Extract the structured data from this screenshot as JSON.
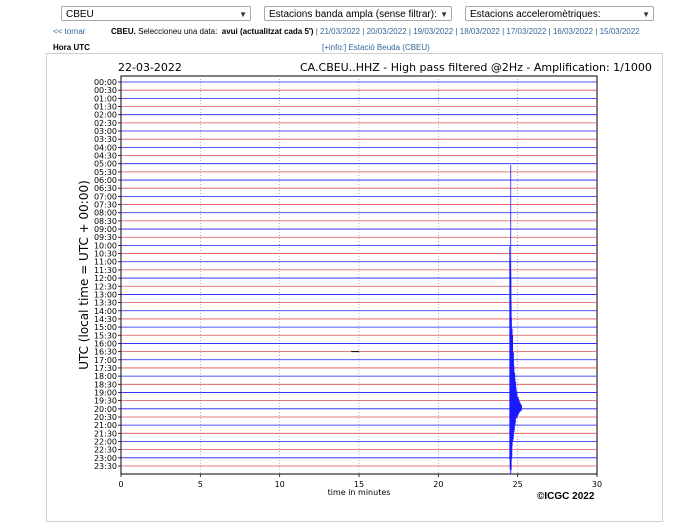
{
  "controls": {
    "station_select": "CBEU",
    "broadband_select": "Estacions banda ampla (sense filtrar):",
    "accel_select": "Estacions acceleromètriques:"
  },
  "datebar": {
    "back": "<< tornar",
    "station_bold": "CBEU.",
    "prompt": "Seleccioneu una data:",
    "current": "avui (actualitzat cada 5')",
    "dates": [
      "21/03/2022",
      "20/03/2022",
      "19/03/2022",
      "18/03/2022",
      "17/03/2022",
      "16/03/2022",
      "15/03/2022"
    ]
  },
  "hora_label": "Hora UTC",
  "info_link": "[+info:] Estació Beuda (CBEU)",
  "copyright": "©ICGC 2022",
  "icons": {
    "dropdown": "chevron-down-icon"
  },
  "colors": {
    "trace_blue": "#1a1aff",
    "trace_red": "#e05050",
    "link": "#336699"
  },
  "chart_data": {
    "type": "line",
    "date_label": "22-03-2022",
    "title": "CA.CBEU..HHZ - High pass filtered @2Hz - Amplification: 1/1000",
    "xlabel": "time in minutes",
    "ylabel": "UTC (local time = UTC + 00:00)",
    "xlim": [
      0,
      30
    ],
    "x_ticks": [
      0,
      5,
      10,
      15,
      20,
      25,
      30
    ],
    "y_ticks": [
      "00:00",
      "00:30",
      "01:00",
      "01:30",
      "02:00",
      "02:30",
      "03:00",
      "03:30",
      "04:00",
      "04:30",
      "05:00",
      "05:30",
      "06:00",
      "06:30",
      "07:00",
      "07:30",
      "08:00",
      "08:30",
      "09:00",
      "09:30",
      "10:00",
      "10:30",
      "11:00",
      "11:30",
      "12:00",
      "12:30",
      "13:00",
      "13:30",
      "14:00",
      "14:30",
      "15:00",
      "15:30",
      "16:00",
      "16:30",
      "17:00",
      "17:30",
      "18:00",
      "18:30",
      "19:00",
      "19:30",
      "20:00",
      "20:30",
      "21:00",
      "21:30",
      "22:00",
      "22:30",
      "23:00",
      "23:30"
    ],
    "event": {
      "start_minute": 24.5,
      "row": "20:00"
    }
  }
}
